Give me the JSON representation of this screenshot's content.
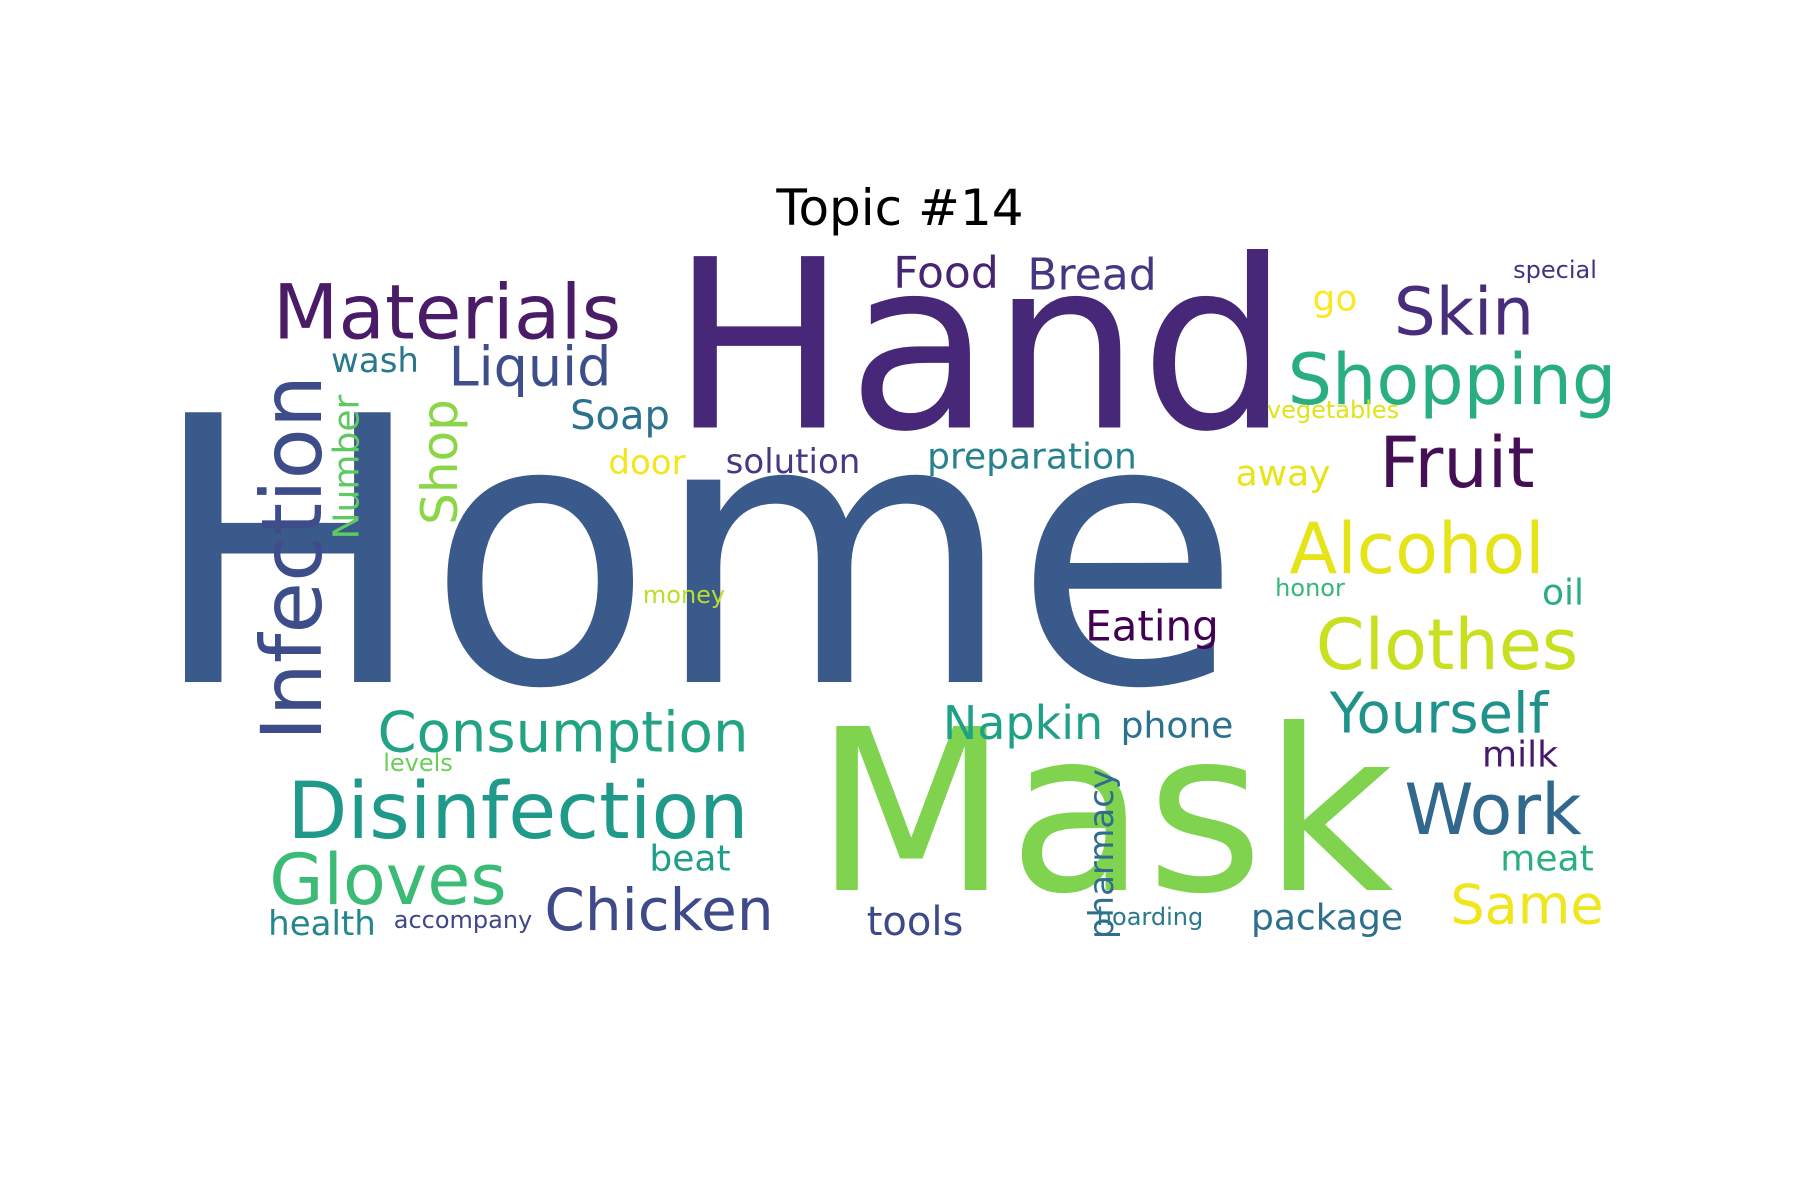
{
  "title": "Topic #14",
  "words": [
    {
      "text": "Home",
      "color": "#3b5a8c"
    },
    {
      "text": "Hand",
      "color": "#472878"
    },
    {
      "text": "Mask",
      "color": "#7fd34e"
    },
    {
      "text": "Materials",
      "color": "#4a1c68"
    },
    {
      "text": "Infection",
      "color": "#3d4d8a"
    },
    {
      "text": "Disinfection",
      "color": "#1f9a8a"
    },
    {
      "text": "Consumption",
      "color": "#22a384"
    },
    {
      "text": "Gloves",
      "color": "#3bbb75"
    },
    {
      "text": "Chicken",
      "color": "#3e4a89"
    },
    {
      "text": "Shopping",
      "color": "#29af7f"
    },
    {
      "text": "Skin",
      "color": "#472d7b"
    },
    {
      "text": "Fruit",
      "color": "#440f55"
    },
    {
      "text": "Alcohol",
      "color": "#e5e419"
    },
    {
      "text": "Clothes",
      "color": "#c8e020"
    },
    {
      "text": "Yourself",
      "color": "#20928c"
    },
    {
      "text": "Work",
      "color": "#31688e"
    },
    {
      "text": "Same",
      "color": "#f1e51d"
    },
    {
      "text": "Liquid",
      "color": "#3d4e8a"
    },
    {
      "text": "Food",
      "color": "#482475"
    },
    {
      "text": "Bread",
      "color": "#453882"
    },
    {
      "text": "Soap",
      "color": "#2c728e"
    },
    {
      "text": "Shop",
      "color": "#8bd646"
    },
    {
      "text": "Number",
      "color": "#5ec962"
    },
    {
      "text": "wash",
      "color": "#2a788e"
    },
    {
      "text": "door",
      "color": "#f4e61e"
    },
    {
      "text": "solution",
      "color": "#443a83"
    },
    {
      "text": "preparation",
      "color": "#26828e"
    },
    {
      "text": "Napkin",
      "color": "#1fa188"
    },
    {
      "text": "phone",
      "color": "#2c728e"
    },
    {
      "text": "Eating",
      "color": "#440154"
    },
    {
      "text": "money",
      "color": "#b8de29"
    },
    {
      "text": "levels",
      "color": "#6ccd5a"
    },
    {
      "text": "beat",
      "color": "#1f9e89"
    },
    {
      "text": "health",
      "color": "#24868e"
    },
    {
      "text": "accompany",
      "color": "#404688"
    },
    {
      "text": "tools",
      "color": "#3e4989"
    },
    {
      "text": "pharmacy",
      "color": "#2f6c8e"
    },
    {
      "text": "hoarding",
      "color": "#2a788e"
    },
    {
      "text": "package",
      "color": "#2d708e"
    },
    {
      "text": "special",
      "color": "#46337f"
    },
    {
      "text": "go",
      "color": "#fde725"
    },
    {
      "text": "vegetables",
      "color": "#dfe318"
    },
    {
      "text": "away",
      "color": "#e7e419"
    },
    {
      "text": "honor",
      "color": "#35b779"
    },
    {
      "text": "oil",
      "color": "#28ae80"
    },
    {
      "text": "milk",
      "color": "#481a6c"
    },
    {
      "text": "meat",
      "color": "#2ab07f"
    }
  ]
}
